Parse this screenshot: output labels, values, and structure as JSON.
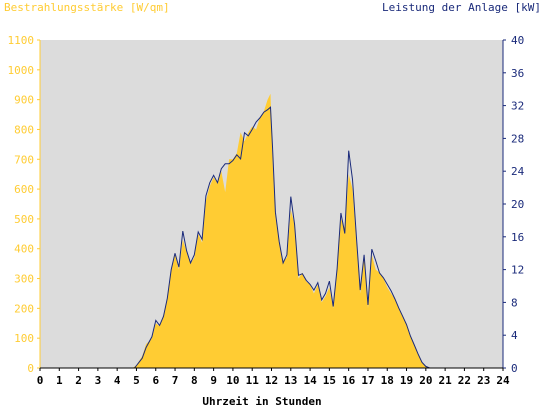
{
  "chart_data": {
    "type": "area",
    "title_left": "Bestrahlungsstärke [W/qm]",
    "title_right": "Leistung der Anlage [kW]",
    "xlabel": "Uhrzeit in Stunden",
    "x_ticks": [
      "0",
      "1",
      "2",
      "3",
      "4",
      "5",
      "6",
      "7",
      "8",
      "9",
      "10",
      "11",
      "12",
      "13",
      "14",
      "15",
      "16",
      "17",
      "18",
      "19",
      "20",
      "21",
      "22",
      "23",
      "24"
    ],
    "y_left_ticks": [
      "0",
      "100",
      "200",
      "300",
      "400",
      "500",
      "600",
      "700",
      "800",
      "900",
      "1000",
      "1100"
    ],
    "y_right_ticks": [
      "0",
      "4",
      "8",
      "12",
      "16",
      "20",
      "24",
      "28",
      "32",
      "36",
      "40"
    ],
    "x_range": [
      0,
      24
    ],
    "y_left_range": [
      0,
      1100
    ],
    "y_right_range": [
      0,
      40
    ],
    "grid": false,
    "colors": {
      "plot_background": "#dcdcdc",
      "irradiance_fill": "#ffcc33",
      "power_line": "#1a2a7a",
      "left_axis_text": "#ffcc33",
      "right_axis_text": "#1a2a7a"
    },
    "series": [
      {
        "key": "irradiance",
        "axis": "left",
        "x": [
          0,
          4.8,
          5.0,
          5.3,
          5.5,
          5.8,
          6.0,
          6.2,
          6.4,
          6.6,
          6.8,
          7.0,
          7.2,
          7.4,
          7.6,
          7.8,
          8.0,
          8.2,
          8.4,
          8.6,
          8.8,
          9.0,
          9.2,
          9.4,
          9.6,
          9.8,
          10.0,
          10.2,
          10.4,
          10.6,
          10.8,
          11.0,
          11.2,
          11.4,
          11.6,
          11.8,
          11.95,
          12.05,
          12.2,
          12.4,
          12.6,
          12.8,
          13.0,
          13.2,
          13.4,
          13.6,
          13.8,
          14.0,
          14.2,
          14.4,
          14.6,
          14.8,
          15.0,
          15.2,
          15.4,
          15.6,
          15.8,
          16.0,
          16.2,
          16.4,
          16.6,
          16.8,
          17.0,
          17.2,
          17.4,
          17.6,
          17.8,
          18.0,
          18.2,
          18.4,
          18.6,
          18.8,
          19.0,
          19.2,
          19.4,
          19.6,
          19.8,
          20.0,
          20.2,
          20.5,
          21,
          24
        ],
        "y": [
          0,
          0,
          10,
          40,
          80,
          100,
          150,
          140,
          180,
          230,
          330,
          380,
          330,
          430,
          390,
          350,
          370,
          450,
          420,
          560,
          610,
          640,
          620,
          660,
          590,
          700,
          700,
          720,
          790,
          760,
          790,
          810,
          800,
          840,
          860,
          900,
          920,
          700,
          510,
          420,
          360,
          370,
          530,
          480,
          300,
          320,
          290,
          280,
          250,
          280,
          220,
          240,
          270,
          200,
          330,
          500,
          470,
          650,
          600,
          420,
          250,
          380,
          200,
          380,
          330,
          320,
          300,
          270,
          250,
          230,
          200,
          170,
          150,
          110,
          80,
          50,
          20,
          5,
          0,
          0,
          0,
          0
        ]
      },
      {
        "key": "power",
        "axis": "right",
        "x": [
          0,
          4.9,
          5.0,
          5.3,
          5.5,
          5.8,
          6.0,
          6.2,
          6.4,
          6.6,
          6.8,
          7.0,
          7.2,
          7.4,
          7.6,
          7.8,
          8.0,
          8.2,
          8.4,
          8.6,
          8.8,
          9.0,
          9.2,
          9.4,
          9.6,
          9.8,
          10.0,
          10.2,
          10.4,
          10.6,
          10.8,
          11.0,
          11.2,
          11.4,
          11.6,
          11.8,
          11.95,
          12.05,
          12.2,
          12.4,
          12.6,
          12.8,
          13.0,
          13.2,
          13.4,
          13.6,
          13.8,
          14.0,
          14.2,
          14.4,
          14.6,
          14.8,
          15.0,
          15.2,
          15.4,
          15.6,
          15.8,
          16.0,
          16.2,
          16.4,
          16.6,
          16.8,
          17.0,
          17.2,
          17.4,
          17.6,
          17.8,
          18.0,
          18.2,
          18.4,
          18.6,
          18.8,
          19.0,
          19.2,
          19.4,
          19.6,
          19.8,
          20.0,
          20.2,
          20.5,
          21,
          24
        ],
        "y": [
          0,
          0,
          0.3,
          1.2,
          2.5,
          3.8,
          5.8,
          5.2,
          6.3,
          8.5,
          12.0,
          14.0,
          12.3,
          16.7,
          14.3,
          12.8,
          13.8,
          16.6,
          15.7,
          21.0,
          22.6,
          23.5,
          22.6,
          24.3,
          24.9,
          24.9,
          25.3,
          26.0,
          25.5,
          28.7,
          28.3,
          29.1,
          30.0,
          30.5,
          31.2,
          31.5,
          31.8,
          27.0,
          19.0,
          15.4,
          12.8,
          13.8,
          20.9,
          17.5,
          11.3,
          11.5,
          10.7,
          10.2,
          9.5,
          10.4,
          8.3,
          9.1,
          10.6,
          7.5,
          12.1,
          18.9,
          16.4,
          26.5,
          23.0,
          16.0,
          9.5,
          13.8,
          7.7,
          14.5,
          13.1,
          11.6,
          11.0,
          10.2,
          9.4,
          8.4,
          7.3,
          6.3,
          5.3,
          3.9,
          2.8,
          1.7,
          0.7,
          0.2,
          0,
          0,
          0,
          0
        ]
      }
    ]
  }
}
